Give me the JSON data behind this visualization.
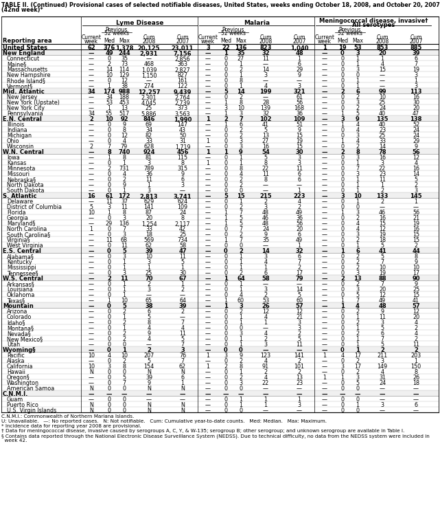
{
  "title_line1": "TABLE II. (Continued) Provisional cases of selected notifiable diseases, United States, weeks ending October 18, 2008, and October 20, 2007",
  "title_line2": "(42nd week)*",
  "rows": [
    [
      "United States",
      "62",
      "376",
      "1,378",
      "20,125",
      "23,011",
      "3",
      "22",
      "136",
      "823",
      "1,040",
      "1",
      "19",
      "53",
      "853",
      "885"
    ],
    [
      "New England",
      "—",
      "49",
      "244",
      "2,931",
      "7,156",
      "—",
      "1",
      "35",
      "32",
      "48",
      "—",
      "0",
      "3",
      "20",
      "39"
    ],
    [
      "Connecticut",
      "—",
      "0",
      "35",
      "—",
      "2,856",
      "—",
      "0",
      "27",
      "11",
      "1",
      "—",
      "0",
      "1",
      "1",
      "6"
    ],
    [
      "Maine§",
      "—",
      "2",
      "73",
      "468",
      "363",
      "—",
      "0",
      "1",
      "—",
      "6",
      "—",
      "0",
      "1",
      "4",
      "7"
    ],
    [
      "Massachusetts",
      "—",
      "14",
      "114",
      "1,039",
      "2,827",
      "—",
      "0",
      "2",
      "14",
      "29",
      "—",
      "0",
      "3",
      "15",
      "19"
    ],
    [
      "New Hampshire",
      "—",
      "10",
      "129",
      "1,150",
      "827",
      "—",
      "0",
      "1",
      "3",
      "9",
      "—",
      "0",
      "0",
      "—",
      "3"
    ],
    [
      "Rhode Island§",
      "—",
      "0",
      "12",
      "—",
      "161",
      "—",
      "0",
      "8",
      "—",
      "—",
      "—",
      "0",
      "1",
      "—",
      "1"
    ],
    [
      "Vermont§",
      "—",
      "1",
      "38",
      "274",
      "122",
      "—",
      "0",
      "1",
      "4",
      "3",
      "—",
      "0",
      "1",
      "—",
      "3"
    ],
    [
      "Mid. Atlantic",
      "34",
      "174",
      "988",
      "12,257",
      "9,439",
      "—",
      "5",
      "14",
      "199",
      "321",
      "—",
      "2",
      "6",
      "99",
      "113"
    ],
    [
      "New Jersey",
      "—",
      "34",
      "188",
      "2,301",
      "2,764",
      "—",
      "0",
      "2",
      "—",
      "61",
      "—",
      "0",
      "2",
      "10",
      "16"
    ],
    [
      "New York (Upstate)",
      "—",
      "53",
      "453",
      "4,045",
      "2,739",
      "—",
      "1",
      "8",
      "28",
      "56",
      "—",
      "0",
      "3",
      "25",
      "30"
    ],
    [
      "New York City",
      "—",
      "1",
      "13",
      "25",
      "373",
      "—",
      "3",
      "10",
      "139",
      "168",
      "—",
      "0",
      "2",
      "24",
      "20"
    ],
    [
      "Pennsylvania",
      "34",
      "55",
      "517",
      "5,886",
      "3,563",
      "—",
      "1",
      "3",
      "32",
      "36",
      "—",
      "1",
      "5",
      "40",
      "47"
    ],
    [
      "E.N. Central",
      "2",
      "10",
      "92",
      "846",
      "1,990",
      "1",
      "2",
      "7",
      "102",
      "109",
      "—",
      "3",
      "9",
      "135",
      "138"
    ],
    [
      "Illinois",
      "—",
      "0",
      "9",
      "69",
      "147",
      "—",
      "1",
      "6",
      "41",
      "51",
      "—",
      "1",
      "4",
      "40",
      "52"
    ],
    [
      "Indiana",
      "—",
      "0",
      "8",
      "34",
      "43",
      "—",
      "0",
      "2",
      "5",
      "9",
      "—",
      "0",
      "4",
      "23",
      "24"
    ],
    [
      "Michigan",
      "—",
      "0",
      "12",
      "82",
      "50",
      "—",
      "0",
      "2",
      "13",
      "15",
      "—",
      "0",
      "3",
      "25",
      "24"
    ],
    [
      "Ohio",
      "—",
      "0",
      "4",
      "33",
      "31",
      "1",
      "0",
      "3",
      "27",
      "19",
      "—",
      "1",
      "4",
      "33",
      "29"
    ],
    [
      "Wisconsin",
      "2",
      "7",
      "79",
      "628",
      "1,719",
      "—",
      "0",
      "3",
      "16",
      "15",
      "—",
      "0",
      "2",
      "14",
      "9"
    ],
    [
      "W.N. Central",
      "—",
      "8",
      "740",
      "924",
      "456",
      "1",
      "1",
      "9",
      "54",
      "30",
      "—",
      "2",
      "8",
      "78",
      "56"
    ],
    [
      "Iowa",
      "—",
      "1",
      "8",
      "81",
      "115",
      "—",
      "0",
      "1",
      "5",
      "3",
      "—",
      "0",
      "3",
      "16",
      "12"
    ],
    [
      "Kansas",
      "—",
      "0",
      "1",
      "3",
      "8",
      "1",
      "0",
      "1",
      "8",
      "3",
      "—",
      "0",
      "1",
      "3",
      "4"
    ],
    [
      "Minnesota",
      "—",
      "2",
      "731",
      "789",
      "315",
      "—",
      "0",
      "8",
      "22",
      "11",
      "—",
      "0",
      "7",
      "22",
      "16"
    ],
    [
      "Missouri",
      "—",
      "0",
      "4",
      "36",
      "9",
      "—",
      "0",
      "4",
      "11",
      "6",
      "—",
      "0",
      "3",
      "23",
      "14"
    ],
    [
      "Nebraska§",
      "—",
      "0",
      "2",
      "11",
      "6",
      "—",
      "0",
      "2",
      "8",
      "6",
      "—",
      "0",
      "1",
      "11",
      "5"
    ],
    [
      "North Dakota",
      "—",
      "0",
      "9",
      "1",
      "3",
      "—",
      "0",
      "2",
      "—",
      "—",
      "—",
      "0",
      "1",
      "1",
      "2"
    ],
    [
      "South Dakota",
      "—",
      "0",
      "1",
      "3",
      "—",
      "—",
      "0",
      "0",
      "—",
      "1",
      "—",
      "0",
      "1",
      "2",
      "3"
    ],
    [
      "S. Atlantic",
      "16",
      "61",
      "172",
      "2,813",
      "3,741",
      "—",
      "5",
      "15",
      "215",
      "223",
      "—",
      "3",
      "10",
      "133",
      "145"
    ],
    [
      "Delaware",
      "—",
      "11",
      "37",
      "629",
      "624",
      "—",
      "0",
      "1",
      "2",
      "4",
      "—",
      "0",
      "1",
      "2",
      "1"
    ],
    [
      "District of Columbia",
      "5",
      "3",
      "11",
      "141",
      "109",
      "—",
      "0",
      "2",
      "3",
      "2",
      "—",
      "0",
      "0",
      "—",
      "—"
    ],
    [
      "Florida",
      "10",
      "1",
      "8",
      "87",
      "24",
      "—",
      "1",
      "7",
      "48",
      "49",
      "—",
      "1",
      "3",
      "46",
      "56"
    ],
    [
      "Georgia",
      "—",
      "0",
      "3",
      "20",
      "8",
      "—",
      "1",
      "5",
      "46",
      "36",
      "—",
      "0",
      "2",
      "16",
      "21"
    ],
    [
      "Maryland§",
      "—",
      "29",
      "136",
      "1,254",
      "2,117",
      "—",
      "1",
      "5",
      "48",
      "56",
      "—",
      "0",
      "4",
      "15",
      "19"
    ],
    [
      "North Carolina",
      "1",
      "0",
      "7",
      "33",
      "42",
      "—",
      "0",
      "7",
      "24",
      "20",
      "—",
      "0",
      "4",
      "12",
      "16"
    ],
    [
      "South Carolina§",
      "—",
      "0",
      "3",
      "18",
      "25",
      "—",
      "0",
      "2",
      "9",
      "6",
      "—",
      "0",
      "3",
      "19",
      "15"
    ],
    [
      "Virginia§",
      "—",
      "11",
      "68",
      "569",
      "734",
      "—",
      "1",
      "7",
      "35",
      "49",
      "—",
      "0",
      "2",
      "18",
      "15"
    ],
    [
      "West Virginia",
      "—",
      "0",
      "11",
      "62",
      "58",
      "—",
      "0",
      "0",
      "—",
      "1",
      "—",
      "0",
      "1",
      "5",
      "2"
    ],
    [
      "E.S. Central",
      "—",
      "0",
      "5",
      "39",
      "47",
      "—",
      "0",
      "2",
      "14",
      "32",
      "—",
      "1",
      "6",
      "41",
      "44"
    ],
    [
      "Alabama§",
      "—",
      "0",
      "3",
      "10",
      "11",
      "—",
      "0",
      "1",
      "3",
      "6",
      "—",
      "0",
      "2",
      "5",
      "8"
    ],
    [
      "Kentucky",
      "—",
      "0",
      "1",
      "3",
      "5",
      "—",
      "0",
      "1",
      "4",
      "7",
      "—",
      "0",
      "2",
      "7",
      "9"
    ],
    [
      "Mississippi",
      "—",
      "0",
      "1",
      "1",
      "1",
      "—",
      "0",
      "1",
      "1",
      "2",
      "—",
      "0",
      "2",
      "10",
      "10"
    ],
    [
      "Tennessee§",
      "—",
      "0",
      "3",
      "25",
      "30",
      "—",
      "0",
      "2",
      "6",
      "17",
      "—",
      "0",
      "3",
      "19",
      "17"
    ],
    [
      "W.S. Central",
      "—",
      "2",
      "11",
      "70",
      "67",
      "—",
      "1",
      "64",
      "58",
      "79",
      "—",
      "2",
      "13",
      "88",
      "90"
    ],
    [
      "Arkansas§",
      "—",
      "0",
      "1",
      "2",
      "1",
      "—",
      "0",
      "1",
      "—",
      "—",
      "—",
      "0",
      "2",
      "7",
      "9"
    ],
    [
      "Louisiana",
      "—",
      "0",
      "1",
      "3",
      "2",
      "—",
      "0",
      "1",
      "3",
      "14",
      "—",
      "0",
      "3",
      "20",
      "25"
    ],
    [
      "Oklahoma",
      "—",
      "0",
      "1",
      "—",
      "—",
      "—",
      "0",
      "4",
      "2",
      "5",
      "—",
      "0",
      "5",
      "12",
      "15"
    ],
    [
      "Texas§",
      "—",
      "1",
      "10",
      "65",
      "64",
      "—",
      "1",
      "60",
      "53",
      "60",
      "—",
      "1",
      "7",
      "49",
      "41"
    ],
    [
      "Mountain",
      "—",
      "0",
      "5",
      "38",
      "39",
      "—",
      "1",
      "3",
      "26",
      "57",
      "—",
      "1",
      "4",
      "48",
      "57"
    ],
    [
      "Arizona",
      "—",
      "0",
      "2",
      "6",
      "2",
      "—",
      "0",
      "2",
      "12",
      "12",
      "—",
      "0",
      "2",
      "9",
      "12"
    ],
    [
      "Colorado",
      "—",
      "0",
      "1",
      "5",
      "—",
      "—",
      "0",
      "1",
      "4",
      "21",
      "—",
      "0",
      "1",
      "11",
      "20"
    ],
    [
      "Idaho§",
      "—",
      "0",
      "2",
      "8",
      "7",
      "—",
      "0",
      "1",
      "1",
      "3",
      "—",
      "0",
      "2",
      "3",
      "4"
    ],
    [
      "Montana§",
      "—",
      "0",
      "1",
      "4",
      "4",
      "—",
      "0",
      "0",
      "—",
      "3",
      "—",
      "0",
      "1",
      "5",
      "2"
    ],
    [
      "Nevada§",
      "—",
      "0",
      "2",
      "9",
      "11",
      "—",
      "0",
      "3",
      "4",
      "2",
      "—",
      "0",
      "2",
      "6",
      "4"
    ],
    [
      "New Mexico§",
      "—",
      "0",
      "2",
      "4",
      "5",
      "—",
      "0",
      "1",
      "2",
      "5",
      "—",
      "0",
      "1",
      "7",
      "2"
    ],
    [
      "Utah",
      "—",
      "0",
      "0",
      "—",
      "7",
      "—",
      "0",
      "1",
      "3",
      "11",
      "—",
      "0",
      "1",
      "5",
      "11"
    ],
    [
      "Wyoming§",
      "—",
      "0",
      "1",
      "2",
      "3",
      "—",
      "0",
      "0",
      "—",
      "—",
      "—",
      "0",
      "1",
      "2",
      "2"
    ],
    [
      "Pacific",
      "10",
      "4",
      "10",
      "207",
      "76",
      "1",
      "3",
      "9",
      "123",
      "141",
      "1",
      "4",
      "17",
      "211",
      "203"
    ],
    [
      "Alaska",
      "—",
      "0",
      "2",
      "5",
      "7",
      "—",
      "0",
      "2",
      "4",
      "2",
      "—",
      "0",
      "2",
      "3",
      "1"
    ],
    [
      "California",
      "10",
      "3",
      "8",
      "154",
      "62",
      "1",
      "2",
      "8",
      "91",
      "101",
      "—",
      "3",
      "17",
      "149",
      "150"
    ],
    [
      "Hawaii",
      "N",
      "0",
      "0",
      "N",
      "N",
      "—",
      "0",
      "1",
      "2",
      "2",
      "—",
      "0",
      "2",
      "4",
      "8"
    ],
    [
      "Oregon§",
      "—",
      "0",
      "5",
      "39",
      "6",
      "—",
      "0",
      "2",
      "4",
      "13",
      "1",
      "1",
      "3",
      "31",
      "26"
    ],
    [
      "Washington",
      "—",
      "0",
      "7",
      "9",
      "1",
      "—",
      "0",
      "3",
      "22",
      "23",
      "—",
      "0",
      "5",
      "24",
      "18"
    ],
    [
      "American Samoa",
      "N",
      "0",
      "0",
      "N",
      "N",
      "—",
      "0",
      "0",
      "—",
      "—",
      "—",
      "0",
      "0",
      "—",
      "—"
    ],
    [
      "C.N.M.I.",
      "—",
      "—",
      "—",
      "—",
      "—",
      "—",
      "—",
      "—",
      "—",
      "—",
      "—",
      "—",
      "—",
      "—",
      "—"
    ],
    [
      "Guam",
      "—",
      "0",
      "0",
      "—",
      "—",
      "—",
      "0",
      "1",
      "1",
      "1",
      "—",
      "0",
      "0",
      "—",
      "—"
    ],
    [
      "Puerto Rico",
      "N",
      "0",
      "0",
      "N",
      "N",
      "—",
      "0",
      "1",
      "1",
      "3",
      "—",
      "0",
      "1",
      "3",
      "6"
    ],
    [
      "U.S. Virgin Islands",
      "N",
      "0",
      "0",
      "N",
      "N",
      "—",
      "0",
      "0",
      "—",
      "—",
      "—",
      "0",
      "0",
      "—",
      "—"
    ]
  ],
  "bold_rows": [
    0,
    1,
    8,
    13,
    19,
    27,
    37,
    42,
    47,
    55,
    63
  ],
  "section_rows": [
    1,
    8,
    13,
    19,
    27,
    37,
    42,
    47,
    55,
    63
  ],
  "footnotes": [
    "C.N.M.I.: Commonwealth of Northern Mariana Islands.",
    "U: Unavailable.   —: No reported cases.   N: Not notifiable.   Cum: Cumulative year-to-date counts.   Med: Median.   Max: Maximum.",
    "* Incidence data for reporting year 2008 are provisional.",
    "† Data for meningococcal disease, invasive caused by serogroups A, C, Y, & W-135; serogroup B; other serogroup; and unknown serogroup are available in Table I.",
    "§ Contains data reported through the National Electronic Disease Surveillance System (NEDSS). Due to technical difficulty, no data from the NEDSS system were included in\n  week 42."
  ],
  "group_labels": [
    "Lyme Disease",
    "Malaria",
    "Meningococcal disease, invasive†\nAll serotypes"
  ],
  "sub_col_labels": [
    "Current\nweek",
    "Med",
    "Max",
    "Cum\n2008",
    "Cum\n2007"
  ]
}
